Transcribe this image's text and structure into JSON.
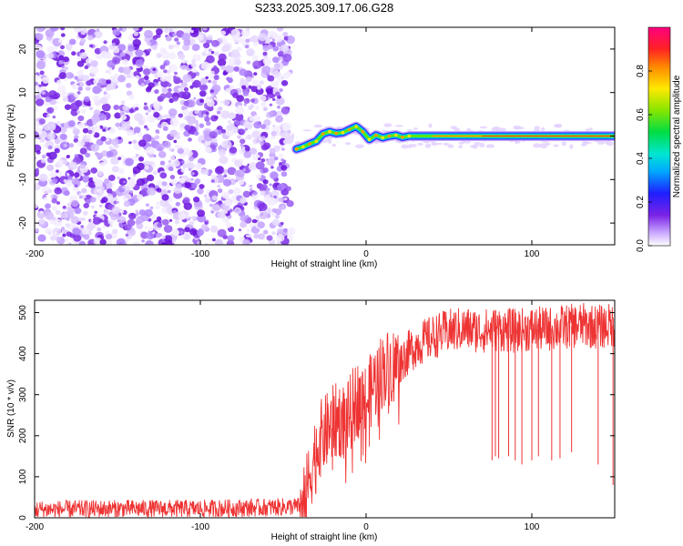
{
  "title": "S233.2025.309.17.06.G28",
  "chart_data": [
    {
      "type": "heatmap",
      "name": "spectrogram",
      "xlabel": "Height of straight line (km)",
      "ylabel": "Frequency (Hz)",
      "xlim": [
        -200,
        150
      ],
      "ylim": [
        -25,
        25
      ],
      "xticks": [
        -200,
        -100,
        0,
        100
      ],
      "yticks": [
        -20,
        -10,
        0,
        10,
        20
      ],
      "noise_region_x": [
        -200,
        -45
      ],
      "signal_track": {
        "x": [
          -42,
          -38,
          -34,
          -30,
          -26,
          -22,
          -18,
          -14,
          -10,
          -6,
          -2,
          2,
          6,
          10,
          14,
          18,
          22,
          26,
          30,
          40,
          60,
          80,
          100,
          120,
          150
        ],
        "freq": [
          -3.0,
          -2.5,
          -1.8,
          -1.2,
          0.5,
          1.0,
          0.6,
          0.8,
          1.5,
          2.2,
          1.0,
          -0.8,
          0.2,
          -0.4,
          0.0,
          0.2,
          -0.3,
          0.0,
          0.0,
          0.0,
          0.0,
          0.0,
          0.0,
          0.0,
          0.0
        ]
      },
      "colorbar": {
        "label": "Normalized spectral amplitude",
        "range": [
          0.0,
          1.0
        ],
        "ticks": [
          0.0,
          0.2,
          0.4,
          0.6,
          0.8
        ]
      }
    },
    {
      "type": "line",
      "name": "snr",
      "xlabel": "Height of straight line (km)",
      "ylabel": "SNR (10 * v/v)",
      "xlim": [
        -200,
        150
      ],
      "ylim": [
        0,
        530
      ],
      "xticks": [
        -200,
        -100,
        0,
        100
      ],
      "yticks": [
        0,
        100,
        200,
        300,
        400,
        500
      ],
      "color": "#ee3333",
      "series": {
        "x": [
          -200,
          -150,
          -100,
          -60,
          -40,
          -36,
          -32,
          -28,
          -24,
          -20,
          -16,
          -12,
          -8,
          -4,
          0,
          5,
          10,
          15,
          20,
          25,
          30,
          40,
          50,
          60,
          70,
          80,
          90,
          100,
          110,
          120,
          130,
          140,
          150
        ],
        "snr": [
          20,
          22,
          22,
          25,
          28,
          60,
          140,
          190,
          210,
          230,
          240,
          230,
          270,
          300,
          280,
          330,
          360,
          370,
          380,
          400,
          420,
          440,
          455,
          460,
          455,
          460,
          455,
          460,
          460,
          465,
          470,
          465,
          470
        ],
        "noise": 22
      },
      "dropouts": [
        {
          "x": 76,
          "snr": 140
        },
        {
          "x": 78,
          "snr": 150
        },
        {
          "x": 80,
          "snr": 145
        },
        {
          "x": 86,
          "snr": 150
        },
        {
          "x": 90,
          "snr": 140
        },
        {
          "x": 94,
          "snr": 130
        },
        {
          "x": 100,
          "snr": 140
        },
        {
          "x": 104,
          "snr": 150
        },
        {
          "x": 112,
          "snr": 140
        },
        {
          "x": 117,
          "snr": 145
        },
        {
          "x": 124,
          "snr": 160
        },
        {
          "x": 140,
          "snr": 130
        },
        {
          "x": 149,
          "snr": 80
        }
      ]
    }
  ]
}
